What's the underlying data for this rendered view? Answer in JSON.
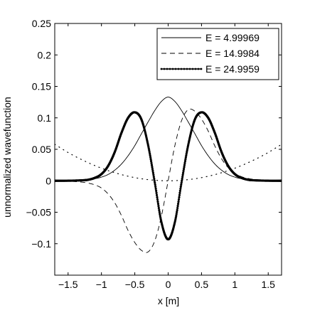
{
  "chart_data": {
    "type": "line",
    "title": "",
    "xlabel": "x [m]",
    "ylabel": "unnormalized wavefunction",
    "xlim": [
      -1.7,
      1.7
    ],
    "ylim": [
      -0.15,
      0.25
    ],
    "x_ticks": [
      -1.5,
      -1,
      -0.5,
      0,
      0.5,
      1,
      1.5
    ],
    "x_tick_labels": [
      "−1.5",
      "−1",
      "−0.5",
      "0",
      "0.5",
      "1",
      "1.5"
    ],
    "y_ticks": [
      -0.1,
      -0.05,
      0,
      0.05,
      0.1,
      0.15,
      0.2,
      0.25
    ],
    "y_tick_labels": [
      "−0.1",
      "−0.05",
      "0",
      "0.05",
      "0.1",
      "0.15",
      "0.2",
      "0.25"
    ],
    "grid": false,
    "legend_position": "top-right",
    "series": [
      {
        "name": "E = 4.99969",
        "style": "solid",
        "x": [
          -1.7,
          -1.5,
          -1.3,
          -1.1,
          -1.0,
          -0.9,
          -0.8,
          -0.7,
          -0.6,
          -0.5,
          -0.4,
          -0.3,
          -0.2,
          -0.1,
          0.0,
          0.1,
          0.2,
          0.3,
          0.4,
          0.5,
          0.6,
          0.7,
          0.8,
          0.9,
          1.0,
          1.1,
          1.3,
          1.5,
          1.7
        ],
        "y": [
          0.0,
          0.0002,
          0.0007,
          0.0033,
          0.0058,
          0.01,
          0.0169,
          0.0266,
          0.0398,
          0.0559,
          0.0749,
          0.0936,
          0.1117,
          0.1262,
          0.133,
          0.1262,
          0.1117,
          0.0936,
          0.0749,
          0.0559,
          0.0398,
          0.0266,
          0.0169,
          0.01,
          0.0058,
          0.0033,
          0.0007,
          0.0002,
          0.0
        ]
      },
      {
        "name": "E = 14.9984",
        "style": "dashed",
        "x": [
          -1.7,
          -1.5,
          -1.3,
          -1.2,
          -1.1,
          -1.0,
          -0.9,
          -0.8,
          -0.7,
          -0.6,
          -0.5,
          -0.4,
          -0.3,
          -0.2,
          -0.1,
          0.0,
          0.1,
          0.2,
          0.3,
          0.4,
          0.5,
          0.6,
          0.7,
          0.8,
          0.9,
          1.0,
          1.1,
          1.2,
          1.3,
          1.5,
          1.7
        ],
        "y": [
          0.0,
          -0.0006,
          -0.0021,
          -0.0037,
          -0.0065,
          -0.0115,
          -0.0209,
          -0.0351,
          -0.0553,
          -0.0791,
          -0.0981,
          -0.1106,
          -0.113,
          -0.0953,
          -0.0556,
          0.0,
          0.0556,
          0.0953,
          0.113,
          0.1106,
          0.0981,
          0.0791,
          0.0553,
          0.0351,
          0.0209,
          0.0115,
          0.0065,
          0.0037,
          0.0021,
          0.0006,
          0.0
        ]
      },
      {
        "name": "E = 24.9959",
        "style": "solid-dotted-markers",
        "x": [
          -1.7,
          -1.5,
          -1.3,
          -1.2,
          -1.1,
          -1.0,
          -0.9,
          -0.8,
          -0.7,
          -0.6,
          -0.5,
          -0.4,
          -0.3,
          -0.2,
          -0.1,
          0.0,
          0.1,
          0.2,
          0.3,
          0.4,
          0.5,
          0.6,
          0.7,
          0.8,
          0.9,
          1.0,
          1.1,
          1.2,
          1.3,
          1.5,
          1.7
        ],
        "y": [
          0.0,
          0.0001,
          0.0007,
          0.0016,
          0.0046,
          0.0106,
          0.0236,
          0.0458,
          0.0761,
          0.1001,
          0.1088,
          0.0973,
          0.0565,
          -0.003,
          -0.0661,
          -0.093,
          -0.0661,
          -0.003,
          0.0565,
          0.0973,
          0.1088,
          0.1001,
          0.0761,
          0.0458,
          0.0236,
          0.0106,
          0.0046,
          0.0016,
          0.0007,
          0.0001,
          0.0
        ]
      },
      {
        "name": "",
        "style": "dotted",
        "x": [
          -1.7,
          -1.5,
          -1.3,
          -1.1,
          -0.9,
          -0.7,
          -0.5,
          -0.3,
          -0.1,
          0.0,
          0.1,
          0.3,
          0.5,
          0.7,
          0.9,
          1.1,
          1.3,
          1.5,
          1.7
        ],
        "y": [
          0.058,
          0.0449,
          0.0338,
          0.0242,
          0.0162,
          0.0098,
          0.005,
          0.0018,
          0.0002,
          0.0,
          0.0002,
          0.0018,
          0.005,
          0.0098,
          0.0162,
          0.0242,
          0.0338,
          0.0449,
          0.058
        ]
      }
    ]
  }
}
